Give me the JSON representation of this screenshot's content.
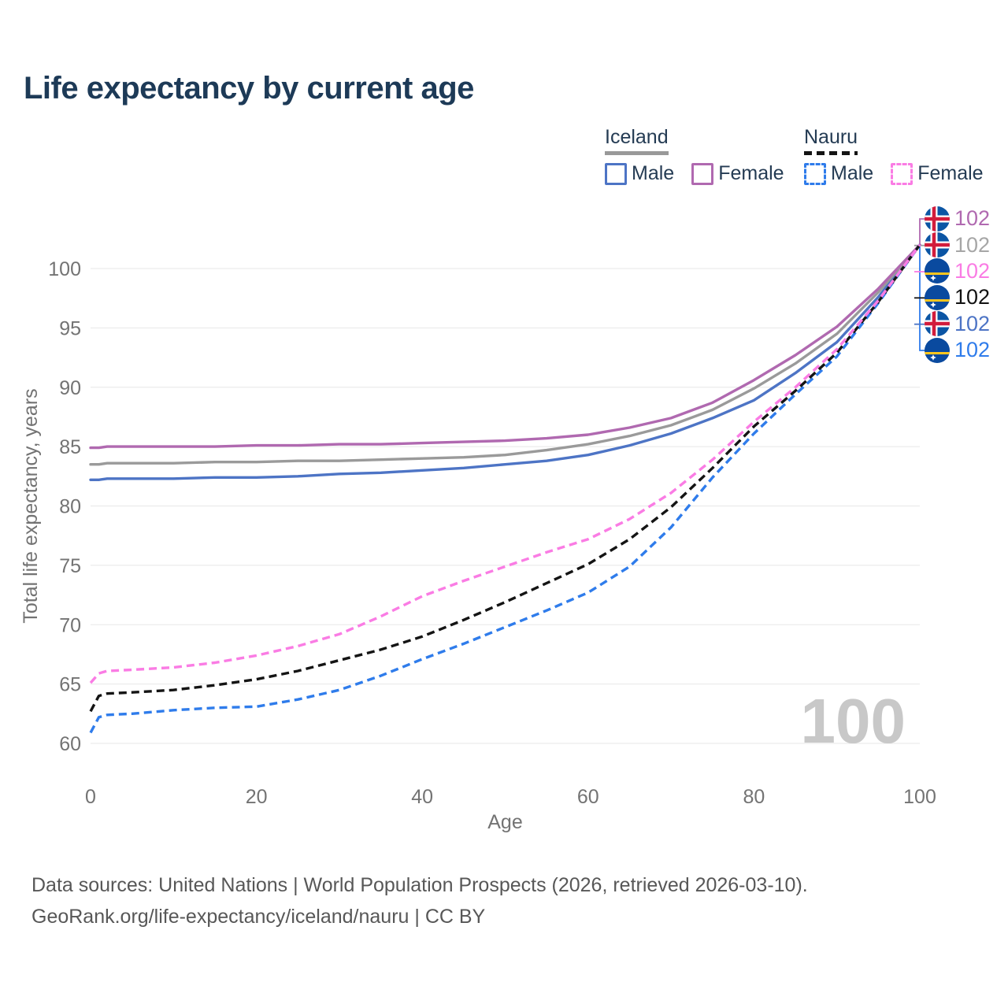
{
  "header": {
    "title": "Life expectancy by current age"
  },
  "legend": {
    "groups": [
      {
        "label": "Iceland",
        "line_style": "solid",
        "underline_color": "#999999",
        "items": [
          {
            "label": "Male",
            "color": "#4d74c5"
          },
          {
            "label": "Female",
            "color": "#b069b0"
          }
        ]
      },
      {
        "label": "Nauru",
        "line_style": "dashed",
        "underline_color": "#141414",
        "items": [
          {
            "label": "Male",
            "color": "#2f7ceb"
          },
          {
            "label": "Female",
            "color": "#fa7ce4"
          }
        ]
      }
    ]
  },
  "chart_data": {
    "type": "line",
    "title": "Life expectancy by current age",
    "xlabel": "Age",
    "ylabel": "Total life expectancy, years",
    "xlim": [
      0,
      100
    ],
    "ylim": [
      60,
      102
    ],
    "x_ticks": [
      0,
      20,
      40,
      60,
      80,
      100
    ],
    "y_ticks": [
      60,
      65,
      70,
      75,
      80,
      85,
      90,
      95,
      100
    ],
    "grid": "horizontal",
    "legend_position": "top-right",
    "x": [
      0,
      1,
      2,
      5,
      10,
      15,
      20,
      25,
      30,
      35,
      40,
      45,
      50,
      55,
      60,
      65,
      70,
      75,
      80,
      85,
      90,
      95,
      100
    ],
    "series": [
      {
        "id": "iceland-male",
        "name": "Iceland Male",
        "country": "Iceland",
        "sex": "Male",
        "color": "#4d74c5",
        "dashed": false,
        "end_label": "102",
        "values": [
          82.2,
          82.2,
          82.3,
          82.3,
          82.3,
          82.4,
          82.4,
          82.5,
          82.7,
          82.8,
          83.0,
          83.2,
          83.5,
          83.8,
          84.3,
          85.1,
          86.1,
          87.4,
          88.9,
          91.2,
          93.8,
          97.6,
          102
        ]
      },
      {
        "id": "iceland-total",
        "name": "Iceland",
        "country": "Iceland",
        "sex": "All",
        "color": "#9a9a9a",
        "dashed": false,
        "end_label": "102",
        "values": [
          83.5,
          83.5,
          83.6,
          83.6,
          83.6,
          83.7,
          83.7,
          83.8,
          83.8,
          83.9,
          84.0,
          84.1,
          84.3,
          84.7,
          85.2,
          85.9,
          86.8,
          88.1,
          89.9,
          92.0,
          94.5,
          98.0,
          102
        ]
      },
      {
        "id": "iceland-female",
        "name": "Iceland Female",
        "country": "Iceland",
        "sex": "Female",
        "color": "#b069b0",
        "dashed": false,
        "end_label": "102",
        "values": [
          84.9,
          84.9,
          85.0,
          85.0,
          85.0,
          85.0,
          85.1,
          85.1,
          85.2,
          85.2,
          85.3,
          85.4,
          85.5,
          85.7,
          86.0,
          86.6,
          87.4,
          88.7,
          90.6,
          92.7,
          95.1,
          98.3,
          102
        ]
      },
      {
        "id": "nauru-male",
        "name": "Nauru Male",
        "country": "Nauru",
        "sex": "Male",
        "color": "#2f7ceb",
        "dashed": true,
        "end_label": "102",
        "values": [
          60.9,
          62.2,
          62.4,
          62.5,
          62.8,
          63.0,
          63.1,
          63.7,
          64.5,
          65.7,
          67.1,
          68.4,
          69.8,
          71.2,
          72.7,
          74.9,
          78.2,
          82.4,
          86.1,
          89.4,
          92.6,
          97.1,
          102
        ]
      },
      {
        "id": "nauru-total",
        "name": "Nauru",
        "country": "Nauru",
        "sex": "All",
        "color": "#141414",
        "dashed": true,
        "end_label": "102",
        "values": [
          62.7,
          64.0,
          64.2,
          64.3,
          64.5,
          64.9,
          65.4,
          66.1,
          67.0,
          67.9,
          69.0,
          70.4,
          71.9,
          73.5,
          75.1,
          77.2,
          79.9,
          83.2,
          86.7,
          89.7,
          92.9,
          97.2,
          102
        ]
      },
      {
        "id": "nauru-female",
        "name": "Nauru Female",
        "country": "Nauru",
        "sex": "Female",
        "color": "#fa7ce4",
        "dashed": true,
        "end_label": "102",
        "values": [
          65.1,
          65.9,
          66.1,
          66.2,
          66.4,
          66.8,
          67.4,
          68.2,
          69.2,
          70.7,
          72.4,
          73.7,
          74.9,
          76.1,
          77.2,
          78.9,
          81.1,
          83.9,
          87.1,
          90.0,
          93.2,
          97.3,
          102
        ]
      }
    ]
  },
  "end_labels": [
    {
      "series": "Iceland Female",
      "flag": "iceland-flag",
      "value": "102",
      "color": "#b069b0"
    },
    {
      "series": "Iceland",
      "flag": "iceland-flag",
      "value": "102",
      "color": "#a6a6a6"
    },
    {
      "series": "Nauru Female",
      "flag": "nauru-flag",
      "value": "102",
      "color": "#fa7ce4"
    },
    {
      "series": "Nauru",
      "flag": "nauru-flag",
      "value": "102",
      "color": "#121212"
    },
    {
      "series": "Iceland Male",
      "flag": "iceland-flag",
      "value": "102",
      "color": "#4d74c5"
    },
    {
      "series": "Nauru Male",
      "flag": "nauru-flag",
      "value": "102",
      "color": "#2f7ceb"
    }
  ],
  "watermark": "100",
  "footer": {
    "line1": "Data sources: United Nations | World Population Prospects (2026, retrieved 2026-03-10).",
    "line2": "GeoRank.org/life-expectancy/iceland/nauru | CC BY"
  }
}
